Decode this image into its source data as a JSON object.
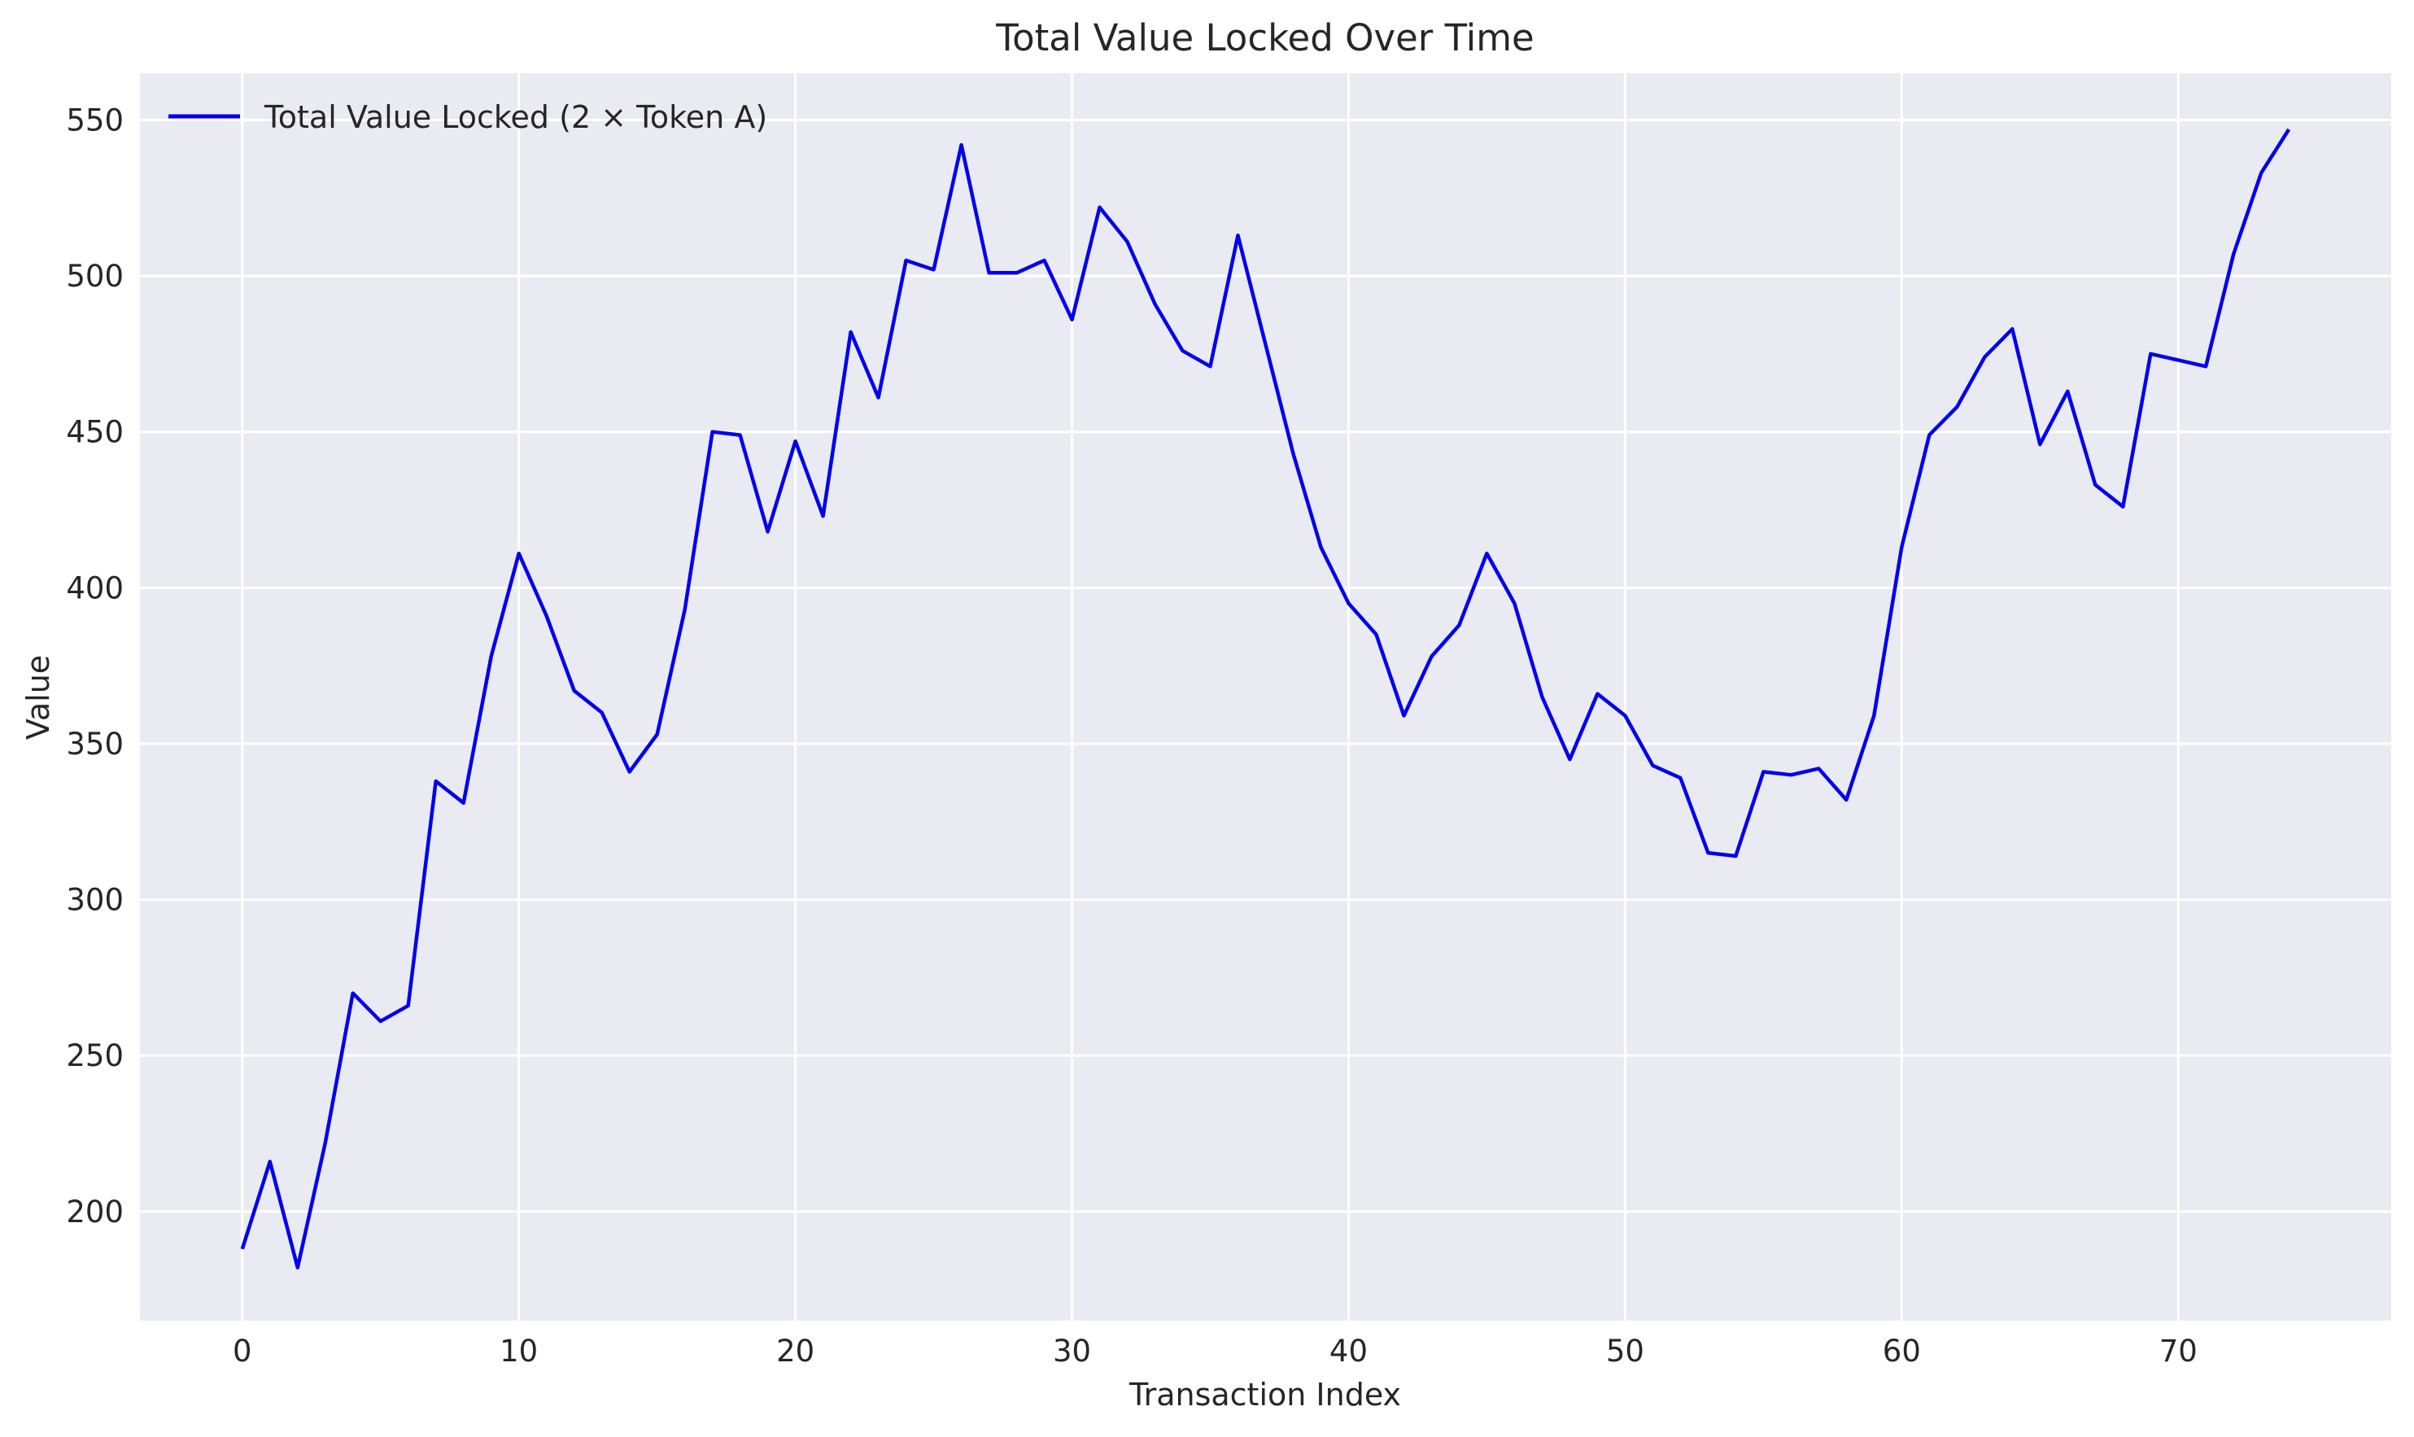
{
  "chart_data": {
    "type": "line",
    "title": "Total Value Locked Over Time",
    "xlabel": "Transaction Index",
    "ylabel": "Value",
    "xlim": [
      -3.7,
      77.7
    ],
    "ylim": [
      165,
      565
    ],
    "x_ticks": [
      0,
      10,
      20,
      30,
      40,
      50,
      60,
      70
    ],
    "y_ticks": [
      200,
      250,
      300,
      350,
      400,
      450,
      500,
      550
    ],
    "grid": true,
    "background": "#eaeaf2",
    "legend_position": "top-left",
    "series": [
      {
        "name": "Total Value Locked (2 × Token A)",
        "color": "#0000ee",
        "x": [
          0,
          1,
          2,
          3,
          4,
          5,
          6,
          7,
          8,
          9,
          10,
          11,
          12,
          13,
          14,
          15,
          16,
          17,
          18,
          19,
          20,
          21,
          22,
          23,
          24,
          25,
          26,
          27,
          28,
          29,
          30,
          31,
          32,
          33,
          34,
          35,
          36,
          37,
          38,
          39,
          40,
          41,
          42,
          43,
          44,
          45,
          46,
          47,
          48,
          49,
          50,
          51,
          52,
          53,
          54,
          55,
          56,
          57,
          58,
          59,
          60,
          61,
          62,
          63,
          64,
          65,
          66,
          67,
          68,
          69,
          70,
          71,
          72,
          73,
          74
        ],
        "values": [
          188,
          216,
          182,
          222,
          270,
          261,
          266,
          338,
          331,
          378,
          411,
          391,
          367,
          360,
          341,
          353,
          393,
          450,
          449,
          418,
          447,
          423,
          482,
          461,
          505,
          502,
          542,
          501,
          501,
          505,
          486,
          522,
          511,
          491,
          476,
          471,
          513,
          478,
          443,
          413,
          395,
          385,
          359,
          378,
          388,
          411,
          395,
          365,
          345,
          366,
          359,
          343,
          339,
          315,
          314,
          341,
          340,
          342,
          332,
          359,
          413,
          449,
          458,
          474,
          483,
          446,
          463,
          433,
          426,
          475,
          473,
          471,
          507,
          533,
          547
        ]
      }
    ]
  }
}
